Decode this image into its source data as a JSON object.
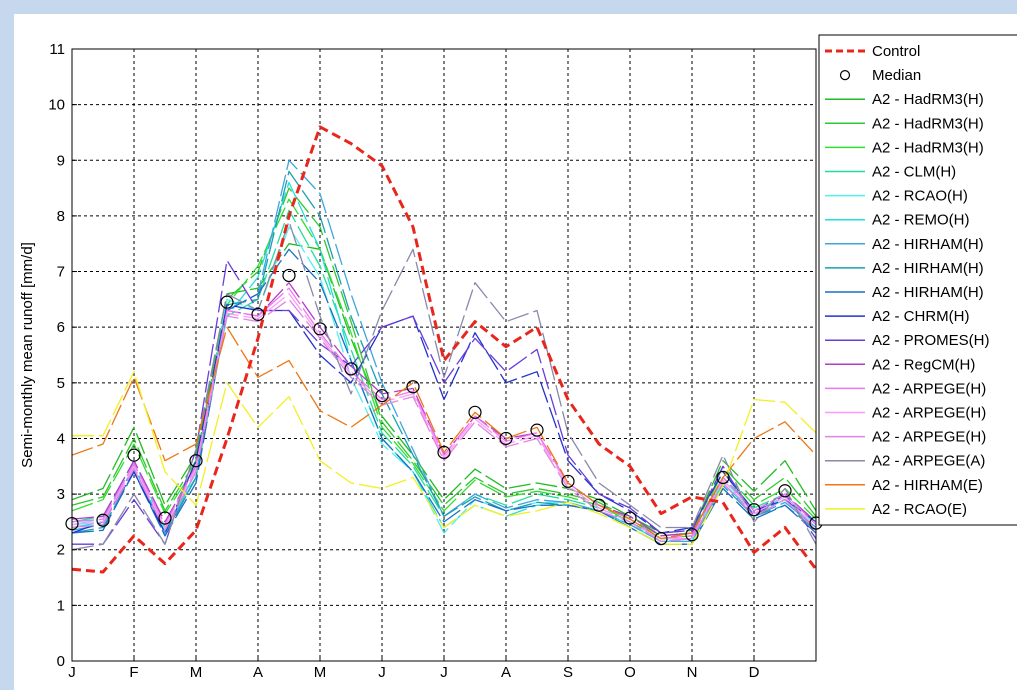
{
  "chart_data": {
    "type": "line",
    "title": "",
    "xlabel": "",
    "ylabel": "Semi-monthly mean runoff [mm/d]",
    "ylim": [
      0,
      11
    ],
    "yticks": [
      0,
      1,
      2,
      3,
      4,
      5,
      6,
      7,
      8,
      9,
      10,
      11
    ],
    "x_periods": 24,
    "month_ticks": [
      "J",
      "F",
      "M",
      "A",
      "M",
      "J",
      "J",
      "A",
      "S",
      "O",
      "N",
      "D"
    ],
    "grid": true,
    "legend_position": "right",
    "series": [
      {
        "name": "Control",
        "color": "#e8261c",
        "style": "dashed-thick",
        "values": [
          1.65,
          1.6,
          2.25,
          1.75,
          2.35,
          4.0,
          5.8,
          8.0,
          9.6,
          9.3,
          8.9,
          7.8,
          5.4,
          6.1,
          5.65,
          6.0,
          4.7,
          3.9,
          3.5,
          2.65,
          2.95,
          2.85,
          1.95,
          2.4,
          1.65
        ]
      },
      {
        "name": "Median",
        "color": "#000000",
        "style": "markers",
        "values": [
          2.47,
          2.53,
          3.7,
          2.57,
          3.6,
          6.45,
          6.23,
          6.93,
          5.97,
          5.25,
          4.77,
          4.93,
          3.75,
          4.47,
          4.0,
          4.15,
          3.23,
          2.8,
          2.57,
          2.2,
          2.27,
          3.3,
          2.72,
          3.06,
          2.48
        ]
      },
      {
        "name": "A2 - HadRM3(H)",
        "color": "#22bb22",
        "values": [
          2.9,
          3.1,
          4.2,
          2.8,
          3.7,
          6.6,
          6.7,
          7.5,
          7.4,
          5.8,
          4.4,
          3.7,
          2.9,
          3.45,
          3.1,
          3.2,
          3.1,
          2.9,
          2.6,
          2.3,
          2.35,
          3.6,
          3.05,
          3.6,
          2.7
        ]
      },
      {
        "name": "A2 - HadRM3(H)",
        "color": "#2ec82e",
        "values": [
          2.8,
          2.95,
          4.0,
          2.7,
          3.6,
          6.5,
          7.0,
          8.5,
          7.8,
          6.1,
          4.3,
          3.6,
          2.8,
          3.3,
          3.0,
          3.1,
          3.0,
          2.85,
          2.55,
          2.25,
          2.3,
          3.5,
          2.9,
          3.3,
          2.6
        ]
      },
      {
        "name": "A2 - HadRM3(H)",
        "color": "#33dd33",
        "values": [
          2.7,
          2.9,
          3.9,
          2.65,
          3.5,
          6.4,
          7.1,
          8.3,
          7.4,
          5.9,
          4.2,
          3.55,
          2.7,
          3.25,
          2.95,
          3.05,
          2.95,
          2.8,
          2.5,
          2.2,
          2.25,
          3.4,
          2.8,
          3.1,
          2.55
        ]
      },
      {
        "name": "A2 - CLM(H)",
        "color": "#22dd99",
        "values": [
          2.5,
          2.6,
          3.6,
          2.4,
          3.3,
          6.2,
          6.5,
          8.1,
          7.1,
          5.6,
          4.1,
          3.5,
          2.6,
          3.0,
          2.8,
          3.0,
          2.9,
          2.75,
          2.5,
          2.2,
          2.2,
          3.3,
          2.75,
          3.0,
          2.5
        ]
      },
      {
        "name": "A2 - RCAO(H)",
        "color": "#55eeee",
        "values": [
          2.45,
          2.55,
          3.55,
          2.35,
          3.4,
          6.5,
          6.3,
          7.8,
          6.9,
          5.1,
          3.9,
          3.4,
          2.3,
          2.9,
          2.7,
          2.85,
          2.85,
          2.7,
          2.45,
          2.2,
          2.2,
          3.25,
          2.7,
          2.95,
          2.45
        ]
      },
      {
        "name": "A2 - REMO(H)",
        "color": "#22dddd",
        "values": [
          2.4,
          2.5,
          3.5,
          2.3,
          3.4,
          6.2,
          6.9,
          8.6,
          7.4,
          5.4,
          4.0,
          3.4,
          2.4,
          2.8,
          2.6,
          2.8,
          2.8,
          2.7,
          2.45,
          2.15,
          2.15,
          3.2,
          2.65,
          2.9,
          2.4
        ]
      },
      {
        "name": "A2 - HIRHAM(H)",
        "color": "#3fa6dd",
        "values": [
          2.35,
          2.45,
          3.5,
          2.3,
          3.3,
          6.3,
          6.6,
          9.0,
          8.4,
          6.6,
          5.0,
          3.8,
          2.6,
          3.0,
          2.75,
          2.9,
          2.85,
          2.7,
          2.45,
          2.15,
          2.15,
          3.2,
          2.6,
          2.85,
          2.4
        ]
      },
      {
        "name": "A2 - HIRHAM(H)",
        "color": "#1c9fb0",
        "values": [
          2.3,
          2.4,
          3.4,
          2.25,
          3.3,
          6.4,
          6.5,
          8.8,
          8.0,
          6.2,
          4.8,
          3.7,
          2.6,
          2.95,
          2.7,
          2.85,
          2.8,
          2.7,
          2.4,
          2.1,
          2.1,
          3.15,
          2.6,
          2.8,
          2.35
        ]
      },
      {
        "name": "A2 - HIRHAM(H)",
        "color": "#1b6fc9",
        "values": [
          2.3,
          2.35,
          3.4,
          2.25,
          3.2,
          6.3,
          6.6,
          7.4,
          6.8,
          5.4,
          4.0,
          3.4,
          2.5,
          2.9,
          2.7,
          2.8,
          2.8,
          2.7,
          2.4,
          2.1,
          2.1,
          3.1,
          2.55,
          2.8,
          2.3
        ]
      },
      {
        "name": "A2 - CHRM(H)",
        "color": "#2233cc",
        "values": [
          2.3,
          2.5,
          3.4,
          2.3,
          3.6,
          6.4,
          6.3,
          6.3,
          5.5,
          5.0,
          6.0,
          6.2,
          4.7,
          5.9,
          5.0,
          5.2,
          3.6,
          3.0,
          2.7,
          2.3,
          2.4,
          3.4,
          2.7,
          2.9,
          2.5
        ]
      },
      {
        "name": "A2 - PROMES(H)",
        "color": "#6a3cdc",
        "values": [
          2.1,
          2.1,
          2.9,
          2.1,
          3.8,
          7.2,
          6.3,
          6.3,
          5.7,
          5.3,
          6.0,
          6.2,
          5.0,
          5.8,
          5.2,
          5.6,
          3.7,
          3.0,
          2.75,
          2.3,
          2.35,
          3.5,
          2.6,
          3.0,
          2.2
        ]
      },
      {
        "name": "A2 - RegCM(H)",
        "color": "#b23cc8",
        "values": [
          2.55,
          2.6,
          3.6,
          2.5,
          3.5,
          6.3,
          6.2,
          6.8,
          6.0,
          5.3,
          4.8,
          4.9,
          3.7,
          4.4,
          4.0,
          4.1,
          3.2,
          2.8,
          2.6,
          2.25,
          2.3,
          3.3,
          2.7,
          3.0,
          2.5
        ]
      },
      {
        "name": "A2 - ARPEGE(H)",
        "color": "#ee77ee",
        "values": [
          2.5,
          2.55,
          3.55,
          2.45,
          3.5,
          6.3,
          6.2,
          6.7,
          5.9,
          5.2,
          4.7,
          4.85,
          3.7,
          4.4,
          3.95,
          4.1,
          3.2,
          2.8,
          2.55,
          2.2,
          2.25,
          3.3,
          2.7,
          3.0,
          2.45
        ]
      },
      {
        "name": "A2 - ARPEGE(H)",
        "color": "#ff99ff",
        "values": [
          2.45,
          2.5,
          3.5,
          2.4,
          3.45,
          6.25,
          6.15,
          6.6,
          5.85,
          5.15,
          4.65,
          4.8,
          3.65,
          4.35,
          3.9,
          4.05,
          3.15,
          2.75,
          2.5,
          2.2,
          2.2,
          3.25,
          2.65,
          2.95,
          2.4
        ]
      },
      {
        "name": "A2 - ARPEGE(H)",
        "color": "#dd88dd",
        "values": [
          2.4,
          2.45,
          3.45,
          2.35,
          3.4,
          6.2,
          6.1,
          6.5,
          5.8,
          5.1,
          4.6,
          4.75,
          3.6,
          4.3,
          3.85,
          4.0,
          3.1,
          2.7,
          2.5,
          2.15,
          2.2,
          3.2,
          2.6,
          2.9,
          2.35
        ]
      },
      {
        "name": "A2 - ARPEGE(A)",
        "color": "#8888aa",
        "values": [
          2.0,
          2.1,
          3.0,
          2.1,
          3.8,
          6.6,
          6.3,
          7.9,
          6.2,
          4.8,
          6.3,
          7.4,
          5.1,
          6.8,
          6.1,
          6.3,
          4.1,
          3.2,
          2.8,
          2.4,
          2.4,
          3.7,
          2.5,
          3.1,
          2.1
        ]
      },
      {
        "name": "A2 - HIRHAM(E)",
        "color": "#ee7711",
        "values": [
          3.7,
          3.9,
          5.1,
          3.6,
          3.9,
          6.0,
          5.1,
          5.4,
          4.5,
          4.2,
          4.6,
          5.0,
          3.75,
          4.47,
          4.0,
          4.2,
          3.2,
          2.8,
          2.55,
          2.2,
          2.3,
          3.3,
          4.0,
          4.3,
          3.7
        ]
      },
      {
        "name": "A2 - RCAO(E)",
        "color": "#f2f020",
        "values": [
          4.05,
          4.05,
          5.2,
          3.4,
          2.8,
          5.0,
          4.2,
          4.75,
          3.6,
          3.2,
          3.1,
          3.3,
          2.4,
          2.8,
          2.6,
          2.7,
          2.85,
          2.65,
          2.4,
          2.1,
          2.1,
          3.15,
          4.7,
          4.65,
          4.1
        ]
      }
    ]
  }
}
